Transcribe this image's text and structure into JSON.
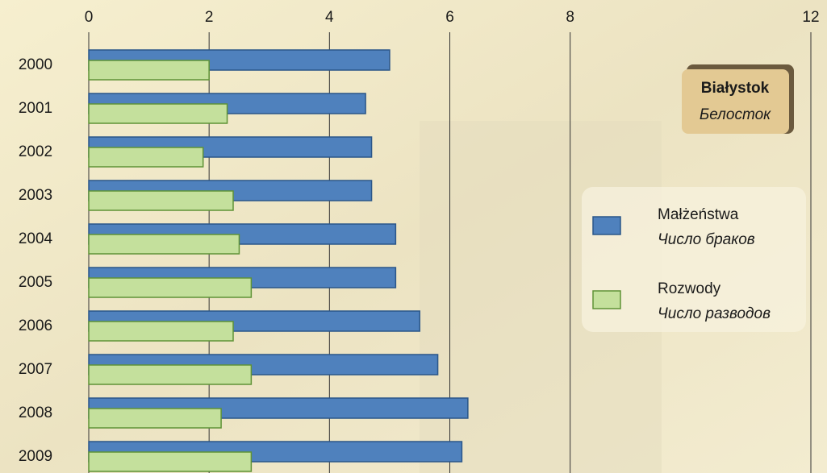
{
  "chart_data": {
    "type": "hbar",
    "title": "Białystok",
    "subtitle": "Белосток",
    "categories": [
      "2000",
      "2001",
      "2002",
      "2003",
      "2004",
      "2005",
      "2006",
      "2007",
      "2008",
      "2009"
    ],
    "series": [
      {
        "name": "Małżeństwa",
        "name_ru": "Число браков",
        "color": "#4f81bd",
        "values": [
          5.0,
          4.6,
          4.7,
          4.7,
          5.1,
          5.1,
          5.5,
          5.8,
          6.3,
          6.2
        ]
      },
      {
        "name": "Rozwody",
        "name_ru": "Число разводов",
        "color": "#c4e09c",
        "values": [
          2.0,
          2.3,
          1.9,
          2.4,
          2.5,
          2.7,
          2.4,
          2.7,
          2.2,
          2.7
        ]
      }
    ],
    "xlim": [
      0,
      12
    ],
    "xticks": [
      0,
      2,
      4,
      6,
      8,
      12
    ],
    "grid": true
  }
}
